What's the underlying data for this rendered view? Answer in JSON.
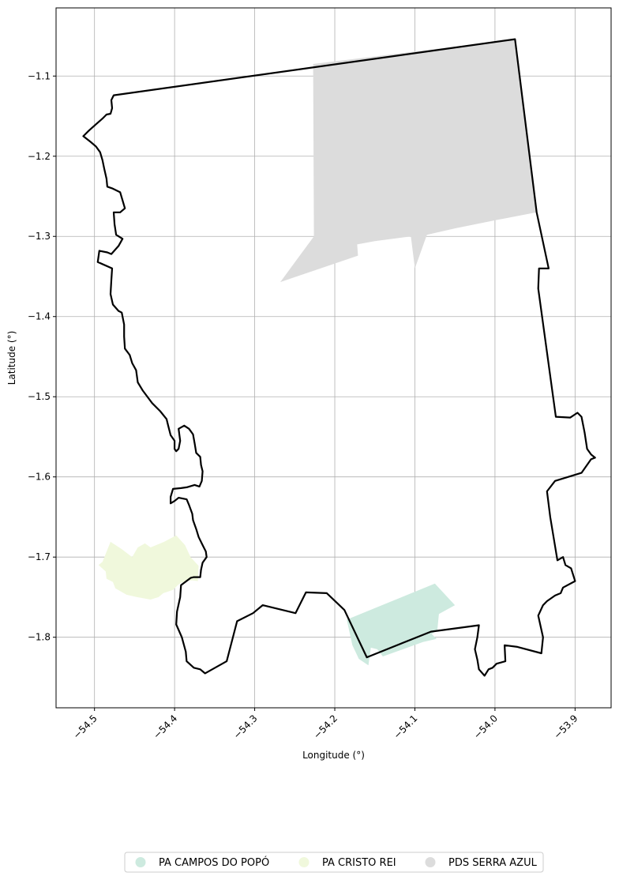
{
  "chart_data": {
    "type": "map",
    "xlabel": "Longitude (°)",
    "ylabel": "Latitude (°)",
    "xlim": [
      -54.548,
      -53.855
    ],
    "ylim": [
      -1.888,
      -1.015
    ],
    "x_ticks": [
      -54.5,
      -54.4,
      -54.3,
      -54.2,
      -54.1,
      -54.0,
      -53.9
    ],
    "x_tick_labels": [
      "−54.5",
      "−54.4",
      "−54.3",
      "−54.2",
      "−54.1",
      "−54.0",
      "−53.9"
    ],
    "y_ticks": [
      -1.1,
      -1.2,
      -1.3,
      -1.4,
      -1.5,
      -1.6,
      -1.7,
      -1.8
    ],
    "y_tick_labels": [
      "−1.1",
      "−1.2",
      "−1.3",
      "−1.4",
      "−1.5",
      "−1.6",
      "−1.7",
      "−1.8"
    ],
    "grid": true,
    "legend_position": "bottom-center",
    "legend": [
      {
        "name": "PA CAMPOS DO POPÓ",
        "color": "#cdeadf"
      },
      {
        "name": "PA CRISTO REI",
        "color": "#f0f8dc"
      },
      {
        "name": "PDS SERRA AZUL",
        "color": "#dcdcdc"
      }
    ],
    "boundary": {
      "color": "#000000",
      "coords": [
        [
          -54.476,
          -1.124
        ],
        [
          -53.975,
          -1.054
        ],
        [
          -53.948,
          -1.27
        ],
        [
          -53.933,
          -1.34
        ],
        [
          -53.945,
          -1.34
        ],
        [
          -53.946,
          -1.365
        ],
        [
          -53.924,
          -1.525
        ],
        [
          -53.906,
          -1.526
        ],
        [
          -53.9,
          -1.522
        ],
        [
          -53.897,
          -1.52
        ],
        [
          -53.892,
          -1.525
        ],
        [
          -53.888,
          -1.545
        ],
        [
          -53.885,
          -1.565
        ],
        [
          -53.88,
          -1.572
        ],
        [
          -53.875,
          -1.576
        ],
        [
          -53.88,
          -1.578
        ],
        [
          -53.892,
          -1.595
        ],
        [
          -53.925,
          -1.605
        ],
        [
          -53.935,
          -1.618
        ],
        [
          -53.931,
          -1.65
        ],
        [
          -53.922,
          -1.704
        ],
        [
          -53.915,
          -1.7
        ],
        [
          -53.912,
          -1.71
        ],
        [
          -53.905,
          -1.714
        ],
        [
          -53.9,
          -1.73
        ],
        [
          -53.915,
          -1.738
        ],
        [
          -53.918,
          -1.745
        ],
        [
          -53.925,
          -1.748
        ],
        [
          -53.935,
          -1.755
        ],
        [
          -53.94,
          -1.76
        ],
        [
          -53.946,
          -1.773
        ],
        [
          -53.94,
          -1.8
        ],
        [
          -53.942,
          -1.82
        ],
        [
          -53.972,
          -1.812
        ],
        [
          -53.988,
          -1.81
        ],
        [
          -53.987,
          -1.83
        ],
        [
          -53.998,
          -1.833
        ],
        [
          -54.003,
          -1.838
        ],
        [
          -54.008,
          -1.84
        ],
        [
          -54.013,
          -1.848
        ],
        [
          -54.02,
          -1.84
        ],
        [
          -54.022,
          -1.828
        ],
        [
          -54.025,
          -1.815
        ],
        [
          -54.022,
          -1.8
        ],
        [
          -54.02,
          -1.785
        ],
        [
          -54.08,
          -1.793
        ],
        [
          -54.16,
          -1.825
        ],
        [
          -54.188,
          -1.766
        ],
        [
          -54.21,
          -1.745
        ],
        [
          -54.236,
          -1.744
        ],
        [
          -54.249,
          -1.77
        ],
        [
          -54.29,
          -1.76
        ],
        [
          -54.302,
          -1.77
        ],
        [
          -54.322,
          -1.78
        ],
        [
          -54.335,
          -1.83
        ],
        [
          -54.362,
          -1.845
        ],
        [
          -54.368,
          -1.84
        ],
        [
          -54.376,
          -1.838
        ],
        [
          -54.385,
          -1.83
        ],
        [
          -54.386,
          -1.818
        ],
        [
          -54.391,
          -1.8
        ],
        [
          -54.398,
          -1.784
        ],
        [
          -54.397,
          -1.768
        ],
        [
          -54.393,
          -1.75
        ],
        [
          -54.392,
          -1.735
        ],
        [
          -54.38,
          -1.726
        ],
        [
          -54.376,
          -1.725
        ],
        [
          -54.368,
          -1.725
        ],
        [
          -54.367,
          -1.716
        ],
        [
          -54.365,
          -1.707
        ],
        [
          -54.36,
          -1.7
        ],
        [
          -54.361,
          -1.693
        ],
        [
          -54.365,
          -1.685
        ],
        [
          -54.37,
          -1.675
        ],
        [
          -54.373,
          -1.665
        ],
        [
          -54.377,
          -1.654
        ],
        [
          -54.378,
          -1.646
        ],
        [
          -54.382,
          -1.635
        ],
        [
          -54.385,
          -1.628
        ],
        [
          -54.395,
          -1.626
        ],
        [
          -54.4,
          -1.63
        ],
        [
          -54.405,
          -1.633
        ],
        [
          -54.405,
          -1.625
        ],
        [
          -54.402,
          -1.615
        ],
        [
          -54.392,
          -1.614
        ],
        [
          -54.385,
          -1.613
        ],
        [
          -54.375,
          -1.61
        ],
        [
          -54.369,
          -1.612
        ],
        [
          -54.366,
          -1.605
        ],
        [
          -54.365,
          -1.593
        ],
        [
          -54.367,
          -1.585
        ],
        [
          -54.368,
          -1.575
        ],
        [
          -54.373,
          -1.57
        ],
        [
          -54.375,
          -1.558
        ],
        [
          -54.377,
          -1.547
        ],
        [
          -54.382,
          -1.54
        ],
        [
          -54.388,
          -1.536
        ],
        [
          -54.395,
          -1.54
        ],
        [
          -54.393,
          -1.555
        ],
        [
          -54.395,
          -1.565
        ],
        [
          -54.398,
          -1.568
        ],
        [
          -54.4,
          -1.565
        ],
        [
          -54.4,
          -1.555
        ],
        [
          -54.405,
          -1.548
        ],
        [
          -54.408,
          -1.536
        ],
        [
          -54.41,
          -1.528
        ],
        [
          -54.418,
          -1.518
        ],
        [
          -54.428,
          -1.508
        ],
        [
          -54.44,
          -1.492
        ],
        [
          -54.446,
          -1.482
        ],
        [
          -54.448,
          -1.467
        ],
        [
          -54.453,
          -1.458
        ],
        [
          -54.456,
          -1.448
        ],
        [
          -54.462,
          -1.44
        ],
        [
          -54.463,
          -1.425
        ],
        [
          -54.463,
          -1.41
        ],
        [
          -54.466,
          -1.395
        ],
        [
          -54.47,
          -1.393
        ],
        [
          -54.477,
          -1.385
        ],
        [
          -54.48,
          -1.372
        ],
        [
          -54.479,
          -1.355
        ],
        [
          -54.478,
          -1.34
        ],
        [
          -54.496,
          -1.332
        ],
        [
          -54.494,
          -1.318
        ],
        [
          -54.484,
          -1.32
        ],
        [
          -54.479,
          -1.322
        ],
        [
          -54.47,
          -1.312
        ],
        [
          -54.465,
          -1.303
        ],
        [
          -54.473,
          -1.298
        ],
        [
          -54.475,
          -1.285
        ],
        [
          -54.476,
          -1.27
        ],
        [
          -54.468,
          -1.27
        ],
        [
          -54.462,
          -1.265
        ],
        [
          -54.465,
          -1.255
        ],
        [
          -54.468,
          -1.245
        ],
        [
          -54.478,
          -1.24
        ],
        [
          -54.484,
          -1.238
        ],
        [
          -54.485,
          -1.228
        ],
        [
          -54.488,
          -1.215
        ],
        [
          -54.49,
          -1.205
        ],
        [
          -54.493,
          -1.195
        ],
        [
          -54.498,
          -1.188
        ],
        [
          -54.505,
          -1.182
        ],
        [
          -54.514,
          -1.175
        ],
        [
          -54.507,
          -1.168
        ],
        [
          -54.498,
          -1.16
        ],
        [
          -54.49,
          -1.153
        ],
        [
          -54.485,
          -1.148
        ],
        [
          -54.48,
          -1.147
        ],
        [
          -54.478,
          -1.14
        ],
        [
          -54.479,
          -1.13
        ],
        [
          -54.476,
          -1.124
        ]
      ]
    },
    "areas": [
      {
        "name": "PDS SERRA AZUL",
        "color": "#dcdcdc",
        "coords": [
          [
            -54.227,
            -1.085
          ],
          [
            -53.975,
            -1.054
          ],
          [
            -53.948,
            -1.27
          ],
          [
            -54.0,
            -1.28
          ],
          [
            -54.05,
            -1.29
          ],
          [
            -54.085,
            -1.298
          ],
          [
            -54.1,
            -1.34
          ],
          [
            -54.105,
            -1.3
          ],
          [
            -54.15,
            -1.306
          ],
          [
            -54.172,
            -1.31
          ],
          [
            -54.171,
            -1.324
          ],
          [
            -54.268,
            -1.357
          ],
          [
            -54.226,
            -1.3
          ]
        ]
      },
      {
        "name": "PA CRISTO REI",
        "color": "#f0f8dc",
        "coords": [
          [
            -54.49,
            -1.706
          ],
          [
            -54.48,
            -1.681
          ],
          [
            -54.466,
            -1.69
          ],
          [
            -54.453,
            -1.7
          ],
          [
            -54.446,
            -1.688
          ],
          [
            -54.437,
            -1.683
          ],
          [
            -54.43,
            -1.688
          ],
          [
            -54.413,
            -1.681
          ],
          [
            -54.398,
            -1.673
          ],
          [
            -54.387,
            -1.685
          ],
          [
            -54.38,
            -1.7
          ],
          [
            -54.37,
            -1.711
          ],
          [
            -54.371,
            -1.73
          ],
          [
            -54.378,
            -1.729
          ],
          [
            -54.385,
            -1.73
          ],
          [
            -54.392,
            -1.732
          ],
          [
            -54.396,
            -1.735
          ],
          [
            -54.402,
            -1.741
          ],
          [
            -54.414,
            -1.745
          ],
          [
            -54.42,
            -1.75
          ],
          [
            -54.43,
            -1.753
          ],
          [
            -54.447,
            -1.75
          ],
          [
            -54.46,
            -1.747
          ],
          [
            -54.474,
            -1.739
          ],
          [
            -54.477,
            -1.731
          ],
          [
            -54.485,
            -1.727
          ],
          [
            -54.486,
            -1.718
          ],
          [
            -54.495,
            -1.71
          ]
        ]
      },
      {
        "name": "PA CAMPOS DO POPÓ",
        "color": "#cdeadf",
        "coords": [
          [
            -54.185,
            -1.778
          ],
          [
            -54.075,
            -1.733
          ],
          [
            -54.05,
            -1.76
          ],
          [
            -54.07,
            -1.771
          ],
          [
            -54.072,
            -1.791
          ],
          [
            -54.079,
            -1.796
          ],
          [
            -54.073,
            -1.802
          ],
          [
            -54.09,
            -1.806
          ],
          [
            -54.14,
            -1.824
          ],
          [
            -54.147,
            -1.815
          ],
          [
            -54.155,
            -1.813
          ],
          [
            -54.158,
            -1.835
          ],
          [
            -54.17,
            -1.827
          ],
          [
            -54.178,
            -1.81
          ]
        ]
      }
    ]
  }
}
